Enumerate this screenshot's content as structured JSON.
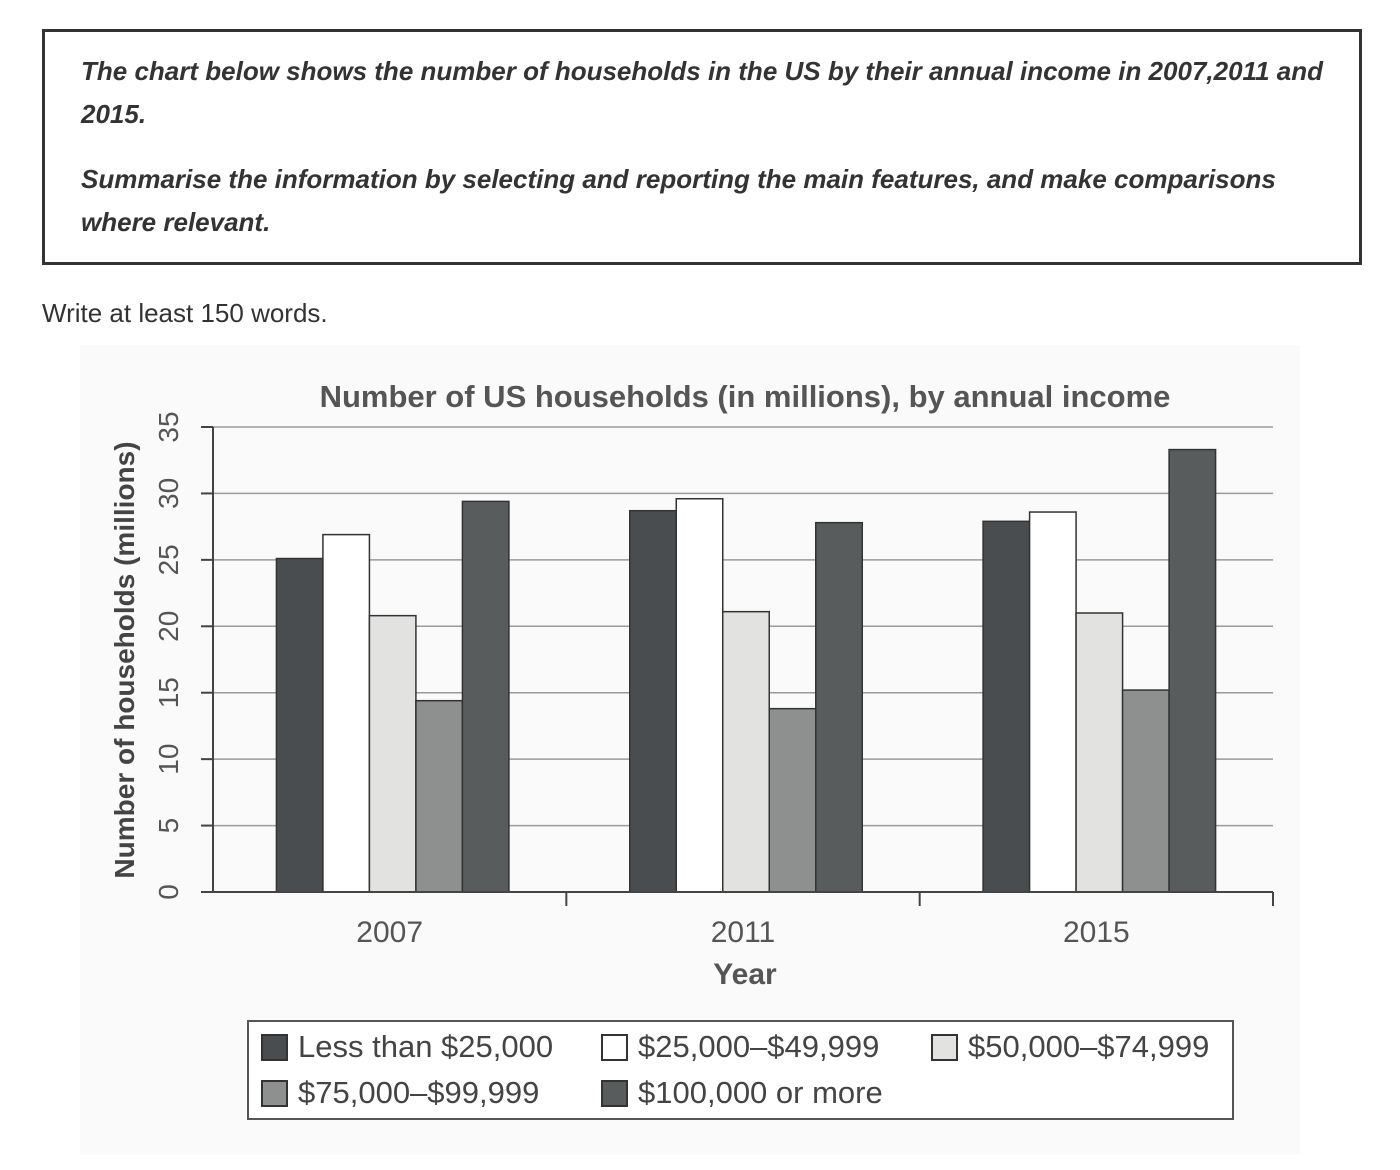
{
  "task": {
    "line1": "The chart below shows the number of households in the US by their annual income in 2007,2011 and 2015.",
    "line2": "Summarise the information by selecting and reporting the main features, and make comparisons where relevant."
  },
  "instruction": "Write at least 150 words.",
  "chart_data": {
    "type": "bar",
    "title": "Number of US households (in millions), by annual income",
    "xlabel": "Year",
    "ylabel": "Number of households (millions)",
    "ylim": [
      0,
      35
    ],
    "yticks": [
      "0",
      "5",
      "10",
      "15",
      "20",
      "25",
      "30",
      "35"
    ],
    "categories": [
      "2007",
      "2011",
      "2015"
    ],
    "legend_position": "bottom",
    "series": [
      {
        "name": "Less than $25,000",
        "color": "#4a4d4f",
        "values": [
          25.1,
          28.7,
          27.9
        ]
      },
      {
        "name": "$25,000–$49,999",
        "color": "#ffffff",
        "values": [
          26.9,
          29.6,
          28.6
        ]
      },
      {
        "name": "$50,000–$74,999",
        "color": "#e2e3e0",
        "values": [
          20.8,
          21.1,
          21.0
        ]
      },
      {
        "name": "$75,000–$99,999",
        "color": "#8d908f",
        "values": [
          14.4,
          13.8,
          15.2
        ]
      },
      {
        "name": "$100,000 or more",
        "color": "#595c5c",
        "values": [
          29.4,
          27.8,
          33.3
        ]
      }
    ]
  }
}
